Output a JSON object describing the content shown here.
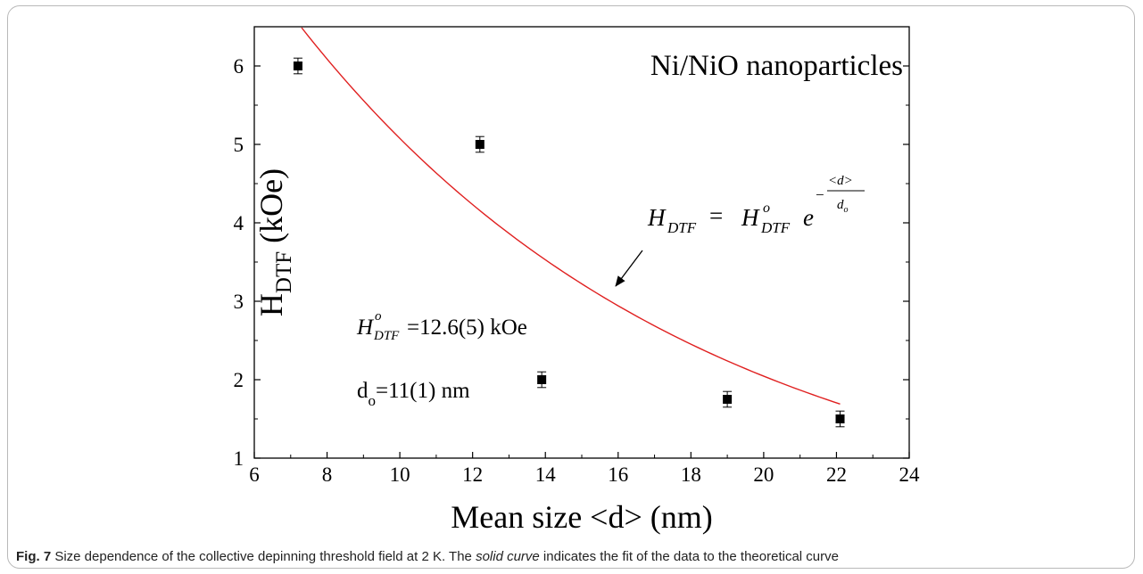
{
  "chart_data": {
    "type": "scatter",
    "title": "Ni/NiO nanoparticles",
    "xlabel": "Mean size <d> (nm)",
    "ylabel_main": "H",
    "ylabel_sub": "DTF",
    "ylabel_unit": "(kOe)",
    "xlim": [
      6,
      24
    ],
    "ylim": [
      1,
      6.5
    ],
    "xticks": [
      6,
      8,
      10,
      12,
      14,
      16,
      18,
      20,
      22,
      24
    ],
    "yticks": [
      1,
      2,
      3,
      4,
      5,
      6
    ],
    "grid": false,
    "series": [
      {
        "kind": "points",
        "x": [
          7.2,
          12.2,
          13.9,
          19.0,
          22.1
        ],
        "y": [
          6.0,
          5.0,
          2.0,
          1.75,
          1.5
        ],
        "yerr": [
          0.1,
          0.1,
          0.1,
          0.1,
          0.1
        ],
        "color": "#000000"
      },
      {
        "kind": "fit-curve",
        "model": "H_DTF = H0_DTF * exp(-<d>/d_o)",
        "H0": 12.6,
        "d0": 11,
        "x_range": [
          7.3,
          22.1
        ],
        "color": "#e02020"
      }
    ],
    "annotations": {
      "formula_lhs": "H",
      "formula_lhs_sub": "DTF",
      "formula_eq": "=",
      "formula_rhs": "H",
      "formula_rhs_sup": "o",
      "formula_rhs_sub": "DTF",
      "formula_e": "e",
      "formula_exp_minus": "−",
      "formula_exp_num": "<d>",
      "formula_exp_den_main": "d",
      "formula_exp_den_sub": "o",
      "h0_main": "H",
      "h0_sup": "o",
      "h0_sub": "DTF",
      "h0_value": "=12.6(5) kOe",
      "d0_main": "d",
      "d0_sub": "o",
      "d0_value": "=11(1) nm"
    }
  },
  "caption": {
    "label": "Fig. 7",
    "text_1": " Size dependence of the collective depinning threshold field at 2 K. The ",
    "text_italic": "solid curve",
    "text_2": " indicates the fit of the data to the theoretical curve"
  }
}
